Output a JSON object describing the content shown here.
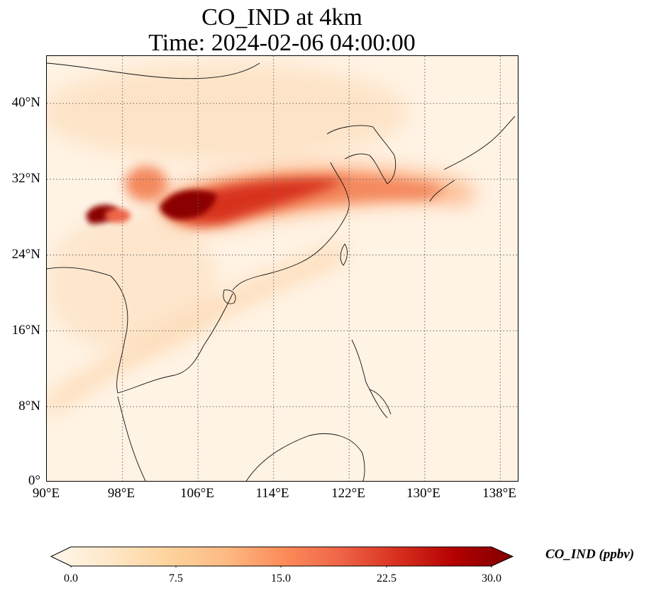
{
  "title": {
    "line1": "CO_IND at 4km",
    "line2": "Time: 2024-02-06 04:00:00"
  },
  "map": {
    "projection": "PlateCarree",
    "lon_range": [
      90,
      140
    ],
    "lat_range": [
      0,
      45
    ],
    "gridlines": "dotted",
    "lat_ticks": [
      "40°N",
      "32°N",
      "24°N",
      "16°N",
      "8°N",
      "0°"
    ],
    "lon_ticks": [
      "90°E",
      "98°E",
      "106°E",
      "114°E",
      "122°E",
      "130°E",
      "138°E"
    ],
    "field": "CO_IND",
    "field_units": "ppbv",
    "description_colors": {
      "low": "#fff5eb",
      "mid": "#fd8d3c",
      "high": "#7f0000"
    }
  },
  "colorbar": {
    "label": "CO_IND (ppbv)",
    "ticks": [
      "0.0",
      "7.5",
      "15.0",
      "22.5",
      "30.0"
    ],
    "min": 0,
    "max": 30,
    "extend": "both",
    "cmap": "OrRd",
    "colors": [
      "#fff7ec",
      "#fee8c8",
      "#fdd49e",
      "#fdbb84",
      "#fc8d59",
      "#ef6548",
      "#d7301f",
      "#b30000",
      "#7f0000"
    ]
  }
}
